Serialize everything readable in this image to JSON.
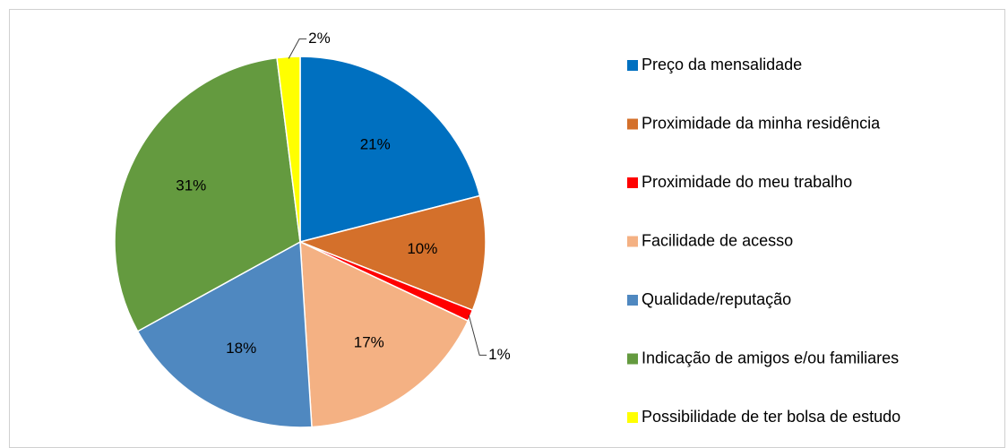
{
  "chart_data": {
    "type": "pie",
    "categories": [
      "Preço da mensalidade",
      "Proximidade da minha residência",
      "Proximidade do meu trabalho",
      "Facilidade de acesso",
      "Qualidade/reputação",
      "Indicação de amigos e/ou familiares",
      "Possibilidade de ter bolsa de estudo"
    ],
    "values": [
      21,
      10,
      1,
      17,
      18,
      31,
      2
    ],
    "value_labels": [
      "21%",
      "10%",
      "1%",
      "17%",
      "18%",
      "31%",
      "2%"
    ],
    "colors": [
      "#0070c0",
      "#d4702b",
      "#ff0000",
      "#f4b183",
      "#4f88c0",
      "#649a3f",
      "#ffff00"
    ],
    "legend": "right"
  }
}
